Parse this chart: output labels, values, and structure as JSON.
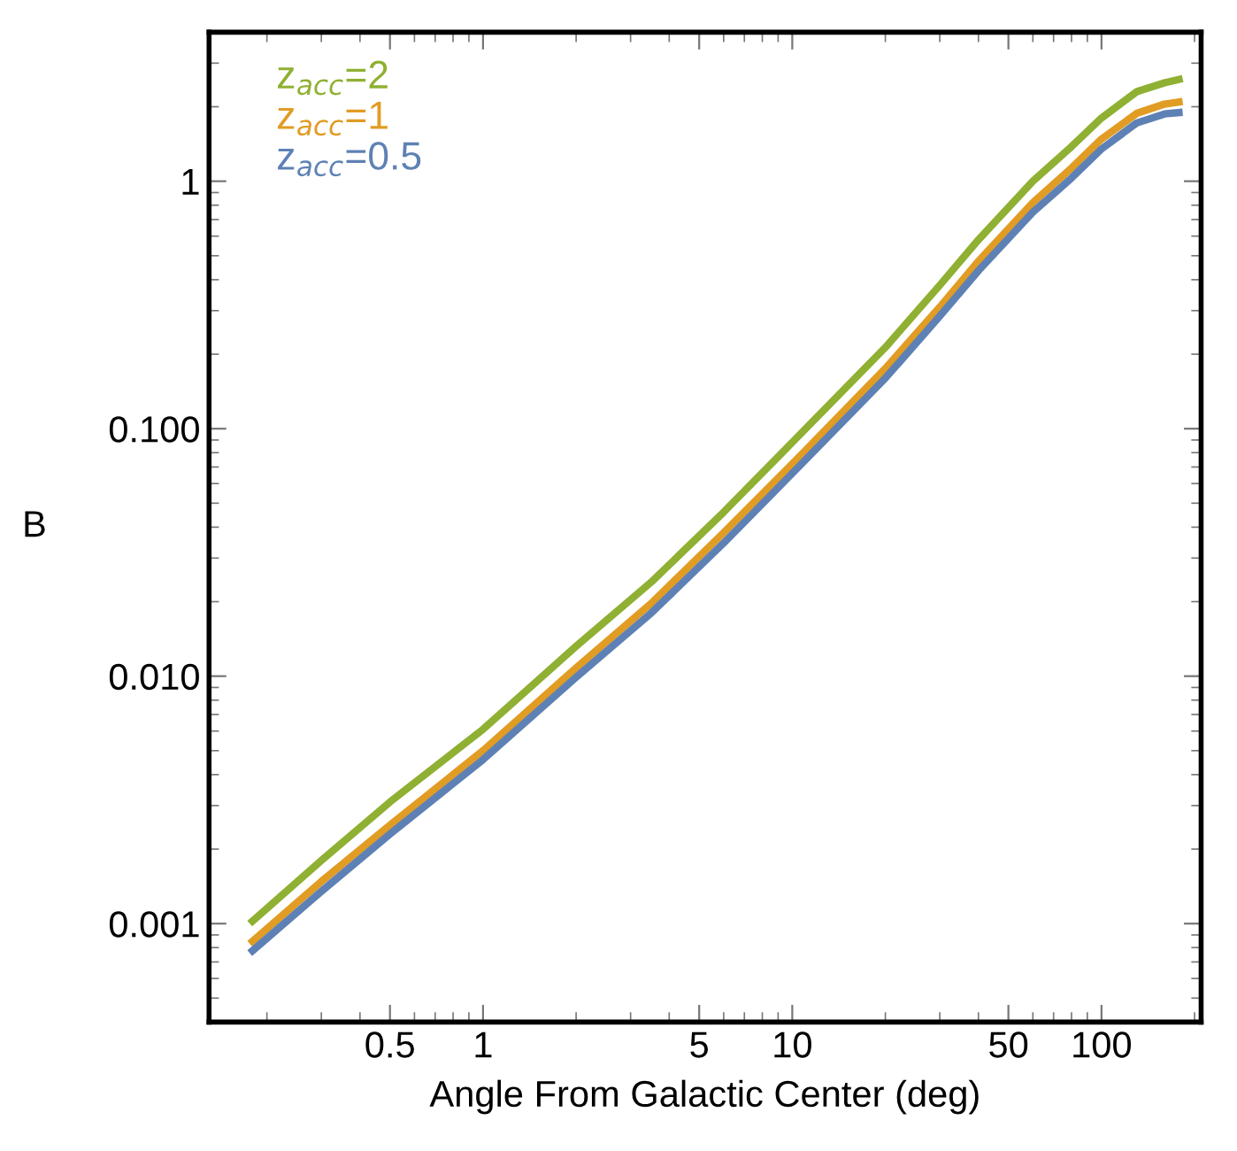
{
  "chart_data": {
    "type": "line",
    "xlabel": "Angle From Galactic Center (deg)",
    "ylabel": "B",
    "log": "xy",
    "legend": "top left",
    "grid": false,
    "marker": "none",
    "line_style": "solid",
    "x": [
      0.176,
      0.3,
      0.5,
      1,
      2,
      3.5,
      6,
      10,
      20,
      30,
      40,
      60,
      80,
      100,
      130,
      160,
      183
    ],
    "xlim": [
      0.13,
      210
    ],
    "ylim": [
      0.0004,
      4
    ],
    "xticks": [
      0.5,
      1,
      5,
      10,
      50,
      100
    ],
    "yticks": [
      {
        "value": 0.001,
        "label": "0.001"
      },
      {
        "value": 0.01,
        "label": "0.010"
      },
      {
        "value": 0.1,
        "label": "0.100"
      },
      {
        "value": 1,
        "label": "1"
      }
    ],
    "series": [
      {
        "name": "z$_{acc}$=2",
        "color": "#8fb032",
        "values": [
          0.001,
          0.0018,
          0.0031,
          0.0061,
          0.0132,
          0.024,
          0.046,
          0.088,
          0.213,
          0.38,
          0.58,
          1.0,
          1.38,
          1.8,
          2.3,
          2.5,
          2.6
        ]
      },
      {
        "name": "z$_{acc}$=1",
        "color": "#e19c24",
        "values": [
          0.00083,
          0.00148,
          0.0025,
          0.005,
          0.0108,
          0.0197,
          0.038,
          0.072,
          0.175,
          0.31,
          0.475,
          0.82,
          1.13,
          1.48,
          1.88,
          2.05,
          2.1
        ]
      },
      {
        "name": "z$_{acc}$=0.5",
        "color": "#5e81b5",
        "values": [
          0.00076,
          0.00135,
          0.0023,
          0.0046,
          0.0099,
          0.018,
          0.0345,
          0.066,
          0.16,
          0.285,
          0.435,
          0.75,
          1.03,
          1.35,
          1.72,
          1.87,
          1.9
        ]
      }
    ]
  }
}
